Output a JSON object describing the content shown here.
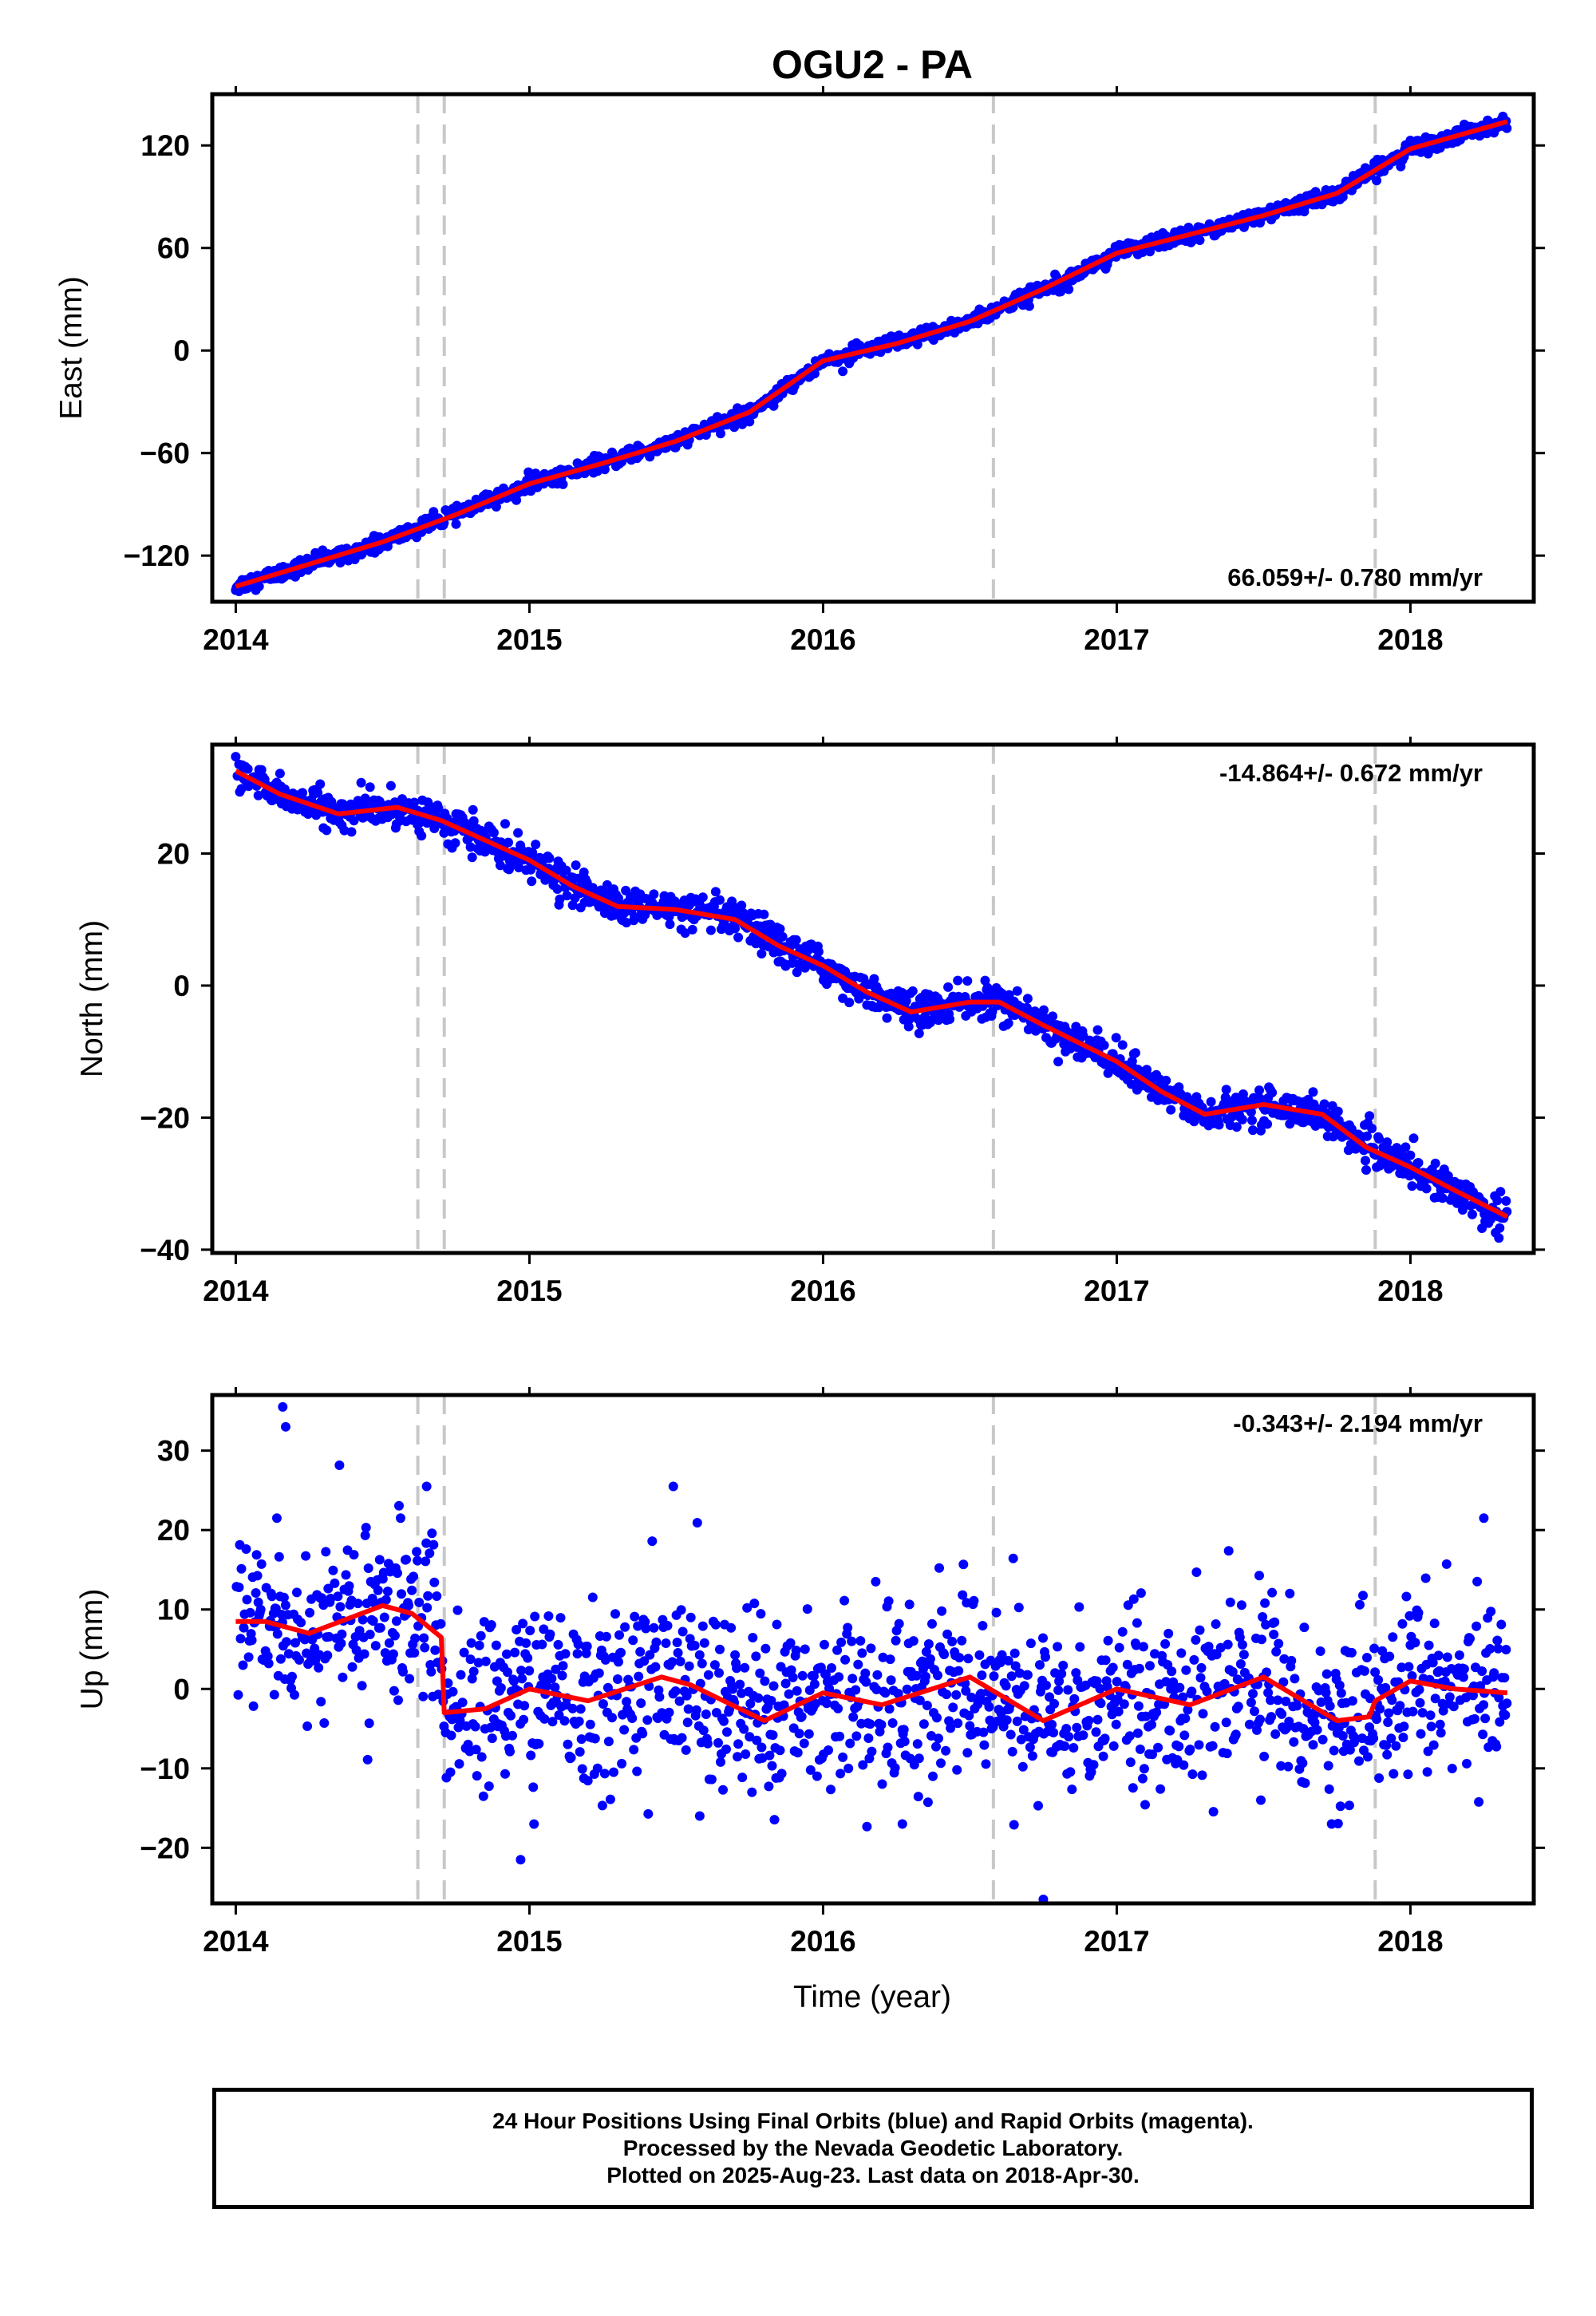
{
  "title": "OGU2 - PA",
  "xlabel": "Time (year)",
  "footer": {
    "line1": "24 Hour Positions Using Final Orbits (blue) and Rapid Orbits (magenta).",
    "line2": "Processed by the Nevada Geodetic Laboratory.",
    "line3": "Plotted on 2025-Aug-23. Last data on 2018-Apr-30."
  },
  "colors": {
    "points": "#0000ff",
    "fit": "#ff0000",
    "breaks": "#c8c8c8",
    "frame": "#000000"
  },
  "chart_data": [
    {
      "type": "scatter",
      "ylabel": "East (mm)",
      "rate_label": "66.059+/- 0.780 mm/yr",
      "rate_position": "bottom-right",
      "xlim": [
        2013.92,
        2018.42
      ],
      "ylim": [
        -147,
        150
      ],
      "xticks": [
        2014,
        2015,
        2016,
        2017,
        2018
      ],
      "yticks": [
        -120,
        -60,
        0,
        60,
        120
      ],
      "break_lines": [
        2014.62,
        2014.71,
        2016.58,
        2017.88
      ],
      "scatter_noise_mm": 2.2,
      "fit": {
        "x": [
          2014.0,
          2014.25,
          2014.5,
          2014.75,
          2015.0,
          2015.25,
          2015.5,
          2015.75,
          2016.0,
          2016.25,
          2016.5,
          2016.75,
          2017.0,
          2017.25,
          2017.5,
          2017.75,
          2018.0,
          2018.33
        ],
        "y": [
          -138,
          -125,
          -112,
          -96,
          -78,
          -66,
          -53,
          -36,
          -6,
          4,
          17,
          36,
          57,
          68,
          79,
          92,
          118,
          134
        ]
      }
    },
    {
      "type": "scatter",
      "ylabel": "North (mm)",
      "rate_label": "-14.864+/- 0.672 mm/yr",
      "rate_position": "top-right",
      "xlim": [
        2013.92,
        2018.42
      ],
      "ylim": [
        -40.5,
        36.5
      ],
      "xticks": [
        2014,
        2015,
        2016,
        2017,
        2018
      ],
      "yticks": [
        -40,
        -20,
        0,
        20
      ],
      "break_lines": [
        2014.62,
        2014.71,
        2016.58,
        2017.88
      ],
      "scatter_noise_mm": 1.3,
      "fit": {
        "x": [
          2014.0,
          2014.15,
          2014.35,
          2014.55,
          2014.7,
          2014.85,
          2015.0,
          2015.15,
          2015.3,
          2015.5,
          2015.7,
          2015.85,
          2016.0,
          2016.15,
          2016.3,
          2016.5,
          2016.6,
          2016.75,
          2017.0,
          2017.15,
          2017.3,
          2017.5,
          2017.7,
          2017.85,
          2018.0,
          2018.15,
          2018.33
        ],
        "y": [
          32.5,
          29,
          26,
          27,
          25,
          22,
          19,
          15,
          12,
          11.5,
          10,
          6,
          3,
          -1,
          -4,
          -2.5,
          -2.5,
          -6,
          -11.5,
          -16,
          -19.5,
          -18,
          -19.5,
          -24.5,
          -27.5,
          -31,
          -35
        ]
      }
    },
    {
      "type": "scatter",
      "ylabel": "Up (mm)",
      "rate_label": "-0.343+/- 2.194 mm/yr",
      "rate_position": "top-right",
      "xlim": [
        2013.92,
        2018.42
      ],
      "ylim": [
        -27,
        37
      ],
      "xticks": [
        2014,
        2015,
        2016,
        2017,
        2018
      ],
      "yticks": [
        -20,
        -10,
        0,
        10,
        20,
        30
      ],
      "break_lines": [
        2014.62,
        2014.71,
        2016.58,
        2017.88
      ],
      "scatter_noise_mm": 5.5,
      "outliers": {
        "x": [
          2014.16,
          2014.17,
          2014.14,
          2014.65,
          2015.49,
          2016.75,
          2015.58,
          2016.27,
          2018.25,
          2014.97
        ],
        "y": [
          35.5,
          33,
          21.5,
          25.5,
          25.5,
          -26.5,
          -16,
          -17,
          21.5,
          -21.5
        ]
      },
      "fit": {
        "x": [
          2014.0,
          2014.1,
          2014.25,
          2014.5,
          2014.6,
          2014.7,
          2014.71,
          2014.85,
          2015.0,
          2015.2,
          2015.45,
          2015.55,
          2015.8,
          2016.0,
          2016.2,
          2016.5,
          2016.75,
          2017.0,
          2017.25,
          2017.5,
          2017.75,
          2017.86,
          2017.88,
          2018.0,
          2018.15,
          2018.33
        ],
        "y": [
          8.5,
          8.5,
          7,
          10.5,
          9.5,
          6.5,
          -3,
          -2.5,
          0,
          -1.5,
          1.5,
          0.5,
          -4,
          -0.5,
          -2,
          1.5,
          -4,
          0,
          -2,
          1.5,
          -4,
          -3.5,
          -1.5,
          1,
          0,
          -0.5
        ]
      }
    }
  ]
}
